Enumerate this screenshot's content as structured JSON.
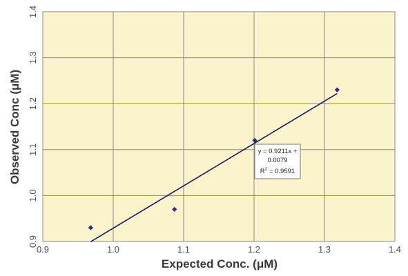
{
  "chart_data": {
    "type": "scatter",
    "title": "",
    "xlabel": "Expected Conc. (μM)",
    "ylabel": "Observed Conc (μM)",
    "xlim": [
      0.9,
      1.4
    ],
    "ylim": [
      0.9,
      1.4
    ],
    "x_ticks": [
      "0.9",
      "1.0",
      "1.1",
      "1.2",
      "1.3",
      "1.4"
    ],
    "y_ticks": [
      "0.9",
      "1.0",
      "1.1",
      "1.2",
      "1.3",
      "1.4"
    ],
    "grid": true,
    "legend": "none",
    "series": [
      {
        "x": [
          0.968,
          1.087,
          1.201,
          1.318
        ],
        "y": [
          0.93,
          0.97,
          1.12,
          1.23
        ],
        "marker": "diamond",
        "color": "#2d2d7a"
      }
    ],
    "trendline": {
      "slope": 0.9211,
      "intercept": 0.0079,
      "x_range": [
        0.968,
        1.318
      ],
      "color": "#1a1a5a"
    },
    "annotation": {
      "line1": "y = 0.9211x +",
      "line2": "0.0079",
      "r2_prefix": "R",
      "r2_sup": "2",
      "r2_value": " = 0.9591"
    },
    "colors": {
      "plot_background": "#fbf3cb",
      "grid": "#8a8a8a",
      "marker": "#2d2d7a",
      "trendline": "#1a1a5a"
    }
  }
}
